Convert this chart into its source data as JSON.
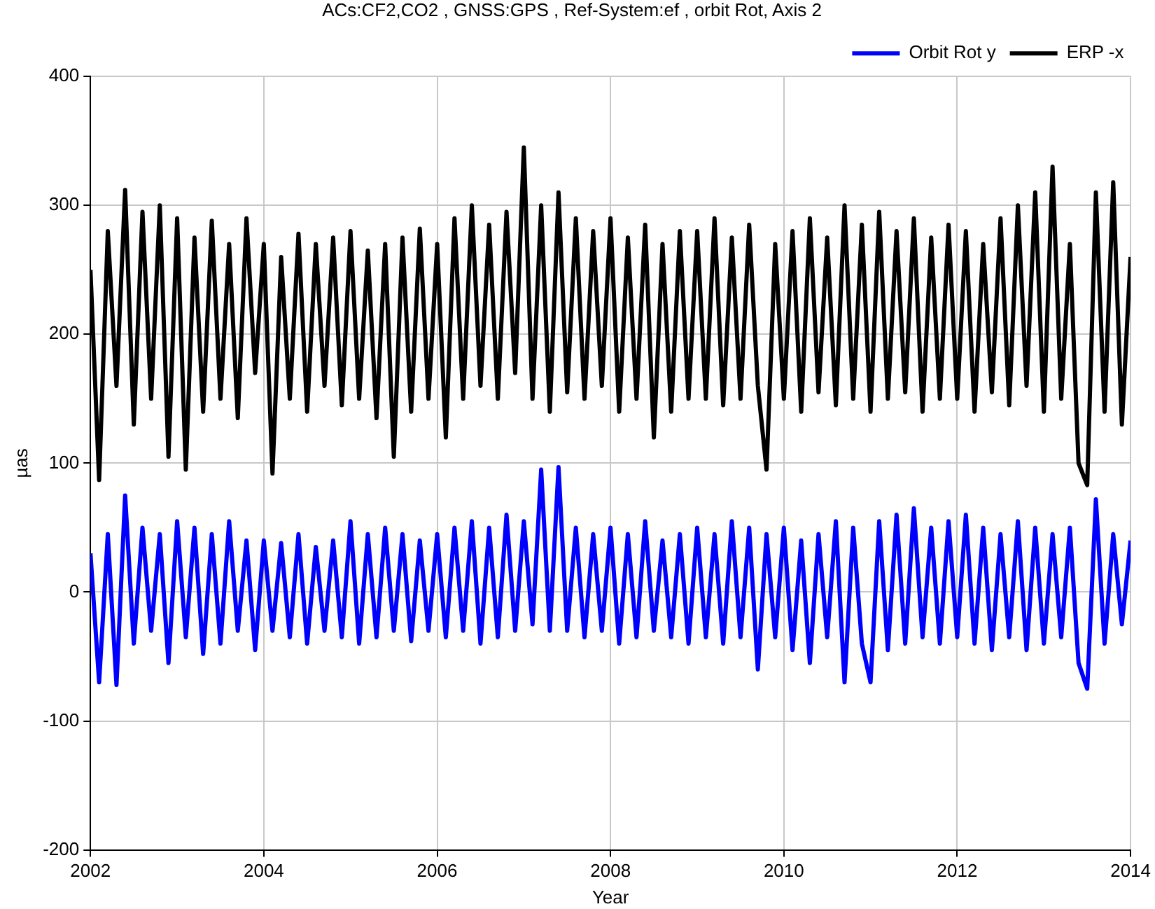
{
  "chart_data": {
    "type": "line",
    "title": "ACs:CF2,CO2 , GNSS:GPS , Ref-System:ef , orbit Rot, Axis 2",
    "xlabel": "Year",
    "ylabel": "µas",
    "xlim": [
      2002,
      2014
    ],
    "xticks": [
      2002,
      2004,
      2006,
      2008,
      2010,
      2012,
      2014
    ],
    "ylim": [
      -200,
      400
    ],
    "yticks": [
      -200,
      -100,
      0,
      100,
      200,
      300,
      400
    ],
    "grid": true,
    "legend": "top right",
    "marker": "none",
    "line_style": "solid",
    "x": [
      2002.0,
      2002.1,
      2002.2,
      2002.3,
      2002.4,
      2002.5,
      2002.6,
      2002.7,
      2002.8,
      2002.9,
      2003.0,
      2003.1,
      2003.2,
      2003.3,
      2003.4,
      2003.5,
      2003.6,
      2003.7,
      2003.8,
      2003.9,
      2004.0,
      2004.1,
      2004.2,
      2004.3,
      2004.4,
      2004.5,
      2004.6,
      2004.7,
      2004.8,
      2004.9,
      2005.0,
      2005.1,
      2005.2,
      2005.3,
      2005.4,
      2005.5,
      2005.6,
      2005.7,
      2005.8,
      2005.9,
      2006.0,
      2006.1,
      2006.2,
      2006.3,
      2006.4,
      2006.5,
      2006.6,
      2006.7,
      2006.8,
      2006.9,
      2007.0,
      2007.1,
      2007.2,
      2007.3,
      2007.4,
      2007.5,
      2007.6,
      2007.7,
      2007.8,
      2007.9,
      2008.0,
      2008.1,
      2008.2,
      2008.3,
      2008.4,
      2008.5,
      2008.6,
      2008.7,
      2008.8,
      2008.9,
      2009.0,
      2009.1,
      2009.2,
      2009.3,
      2009.4,
      2009.5,
      2009.6,
      2009.7,
      2009.8,
      2009.9,
      2010.0,
      2010.1,
      2010.2,
      2010.3,
      2010.4,
      2010.5,
      2010.6,
      2010.7,
      2010.8,
      2010.9,
      2011.0,
      2011.1,
      2011.2,
      2011.3,
      2011.4,
      2011.5,
      2011.6,
      2011.7,
      2011.8,
      2011.9,
      2012.0,
      2012.1,
      2012.2,
      2012.3,
      2012.4,
      2012.5,
      2012.6,
      2012.7,
      2012.8,
      2012.9,
      2013.0,
      2013.1,
      2013.2,
      2013.3,
      2013.4,
      2013.5,
      2013.6,
      2013.7,
      2013.8,
      2013.9,
      2014.0
    ],
    "series": [
      {
        "name": "Orbit Rot y",
        "color": "#0000ff",
        "values": [
          30,
          -70,
          45,
          -72,
          75,
          -40,
          50,
          -30,
          45,
          -55,
          55,
          -35,
          50,
          -48,
          45,
          -40,
          55,
          -30,
          40,
          -45,
          40,
          -30,
          38,
          -35,
          45,
          -40,
          35,
          -30,
          40,
          -35,
          55,
          -40,
          45,
          -35,
          50,
          -30,
          45,
          -38,
          40,
          -30,
          45,
          -35,
          50,
          -30,
          55,
          -40,
          50,
          -35,
          60,
          -30,
          55,
          -25,
          95,
          -30,
          97,
          -30,
          50,
          -35,
          45,
          -30,
          50,
          -40,
          45,
          -35,
          55,
          -30,
          40,
          -35,
          45,
          -40,
          50,
          -35,
          45,
          -40,
          55,
          -35,
          50,
          -60,
          45,
          -35,
          50,
          -45,
          40,
          -55,
          45,
          -35,
          55,
          -70,
          50,
          -40,
          -70,
          55,
          -45,
          60,
          -40,
          65,
          -35,
          50,
          -40,
          55,
          -35,
          60,
          -40,
          50,
          -45,
          45,
          -35,
          55,
          -45,
          50,
          -40,
          45,
          -35,
          50,
          -55,
          -75,
          72,
          -40,
          45,
          -25,
          40
        ]
      },
      {
        "name": "ERP -x",
        "color": "#000000",
        "values": [
          250,
          87,
          280,
          160,
          312,
          130,
          295,
          150,
          300,
          105,
          290,
          95,
          275,
          140,
          288,
          150,
          270,
          135,
          290,
          170,
          270,
          92,
          260,
          150,
          278,
          140,
          270,
          160,
          275,
          145,
          280,
          150,
          265,
          135,
          270,
          105,
          275,
          140,
          282,
          150,
          270,
          120,
          290,
          150,
          300,
          160,
          285,
          150,
          295,
          170,
          345,
          150,
          300,
          140,
          310,
          155,
          290,
          150,
          280,
          160,
          290,
          140,
          275,
          150,
          285,
          120,
          270,
          140,
          280,
          150,
          280,
          150,
          290,
          145,
          275,
          150,
          285,
          160,
          95,
          270,
          150,
          280,
          140,
          290,
          155,
          275,
          145,
          300,
          150,
          285,
          140,
          295,
          150,
          280,
          155,
          290,
          140,
          275,
          150,
          285,
          150,
          280,
          140,
          270,
          155,
          290,
          145,
          300,
          160,
          310,
          140,
          330,
          150,
          270,
          100,
          83,
          310,
          140,
          318,
          130,
          260
        ]
      }
    ]
  }
}
